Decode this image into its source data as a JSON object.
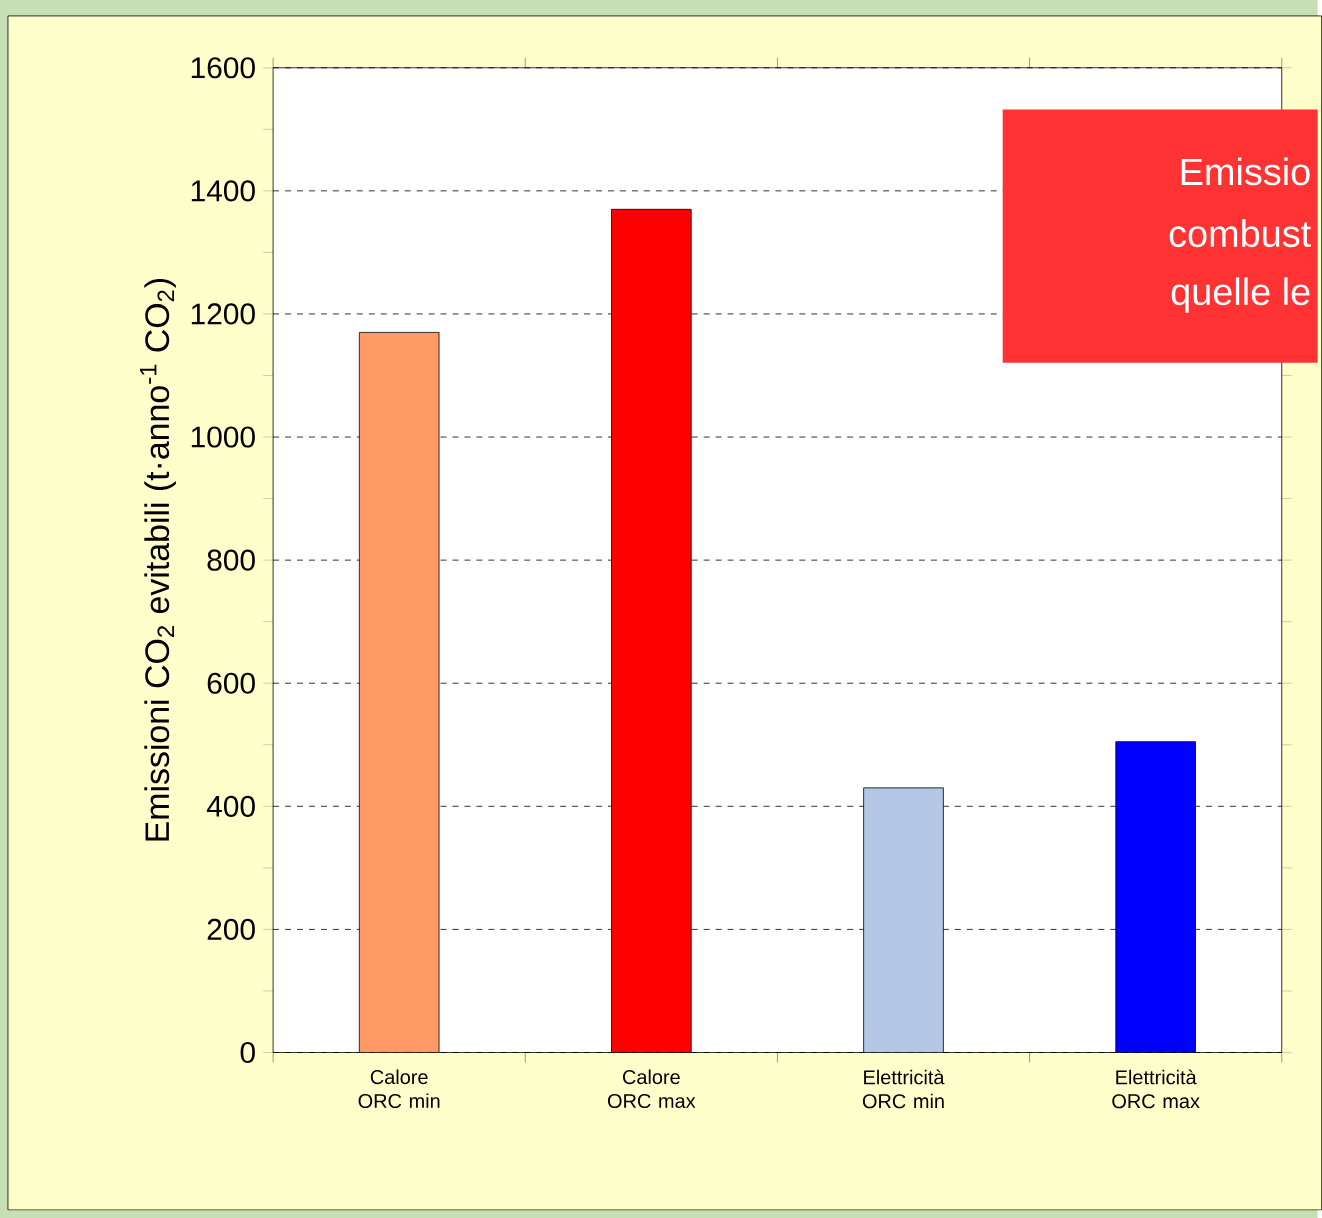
{
  "chart_data": {
    "type": "bar",
    "ylabel": "Emissioni CO$_{2}$ evitabili (t·anno$^{-1}$ CO$_{2}$)",
    "categories": [
      "Calore ORC min",
      "Calore ORC max",
      "Elettricità ORC min",
      "Elettricità ORC max"
    ],
    "values": [
      1170,
      1370,
      430,
      505
    ],
    "colors": [
      "#ff9966",
      "#ff0000",
      "#b4c7e7",
      "#0000ff"
    ],
    "ylim": [
      0,
      1600
    ],
    "yticks": [
      0,
      200,
      400,
      600,
      800,
      1000,
      1200,
      1400,
      1600
    ],
    "grid": "y",
    "annotations": [
      "Emissio",
      "combust",
      "quelle le"
    ]
  }
}
